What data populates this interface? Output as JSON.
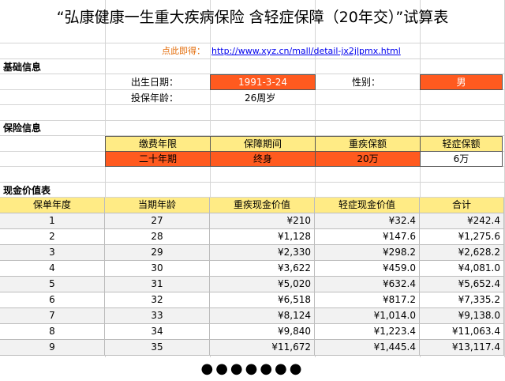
{
  "title": "“弘康健康一生重大疾病保险 含轻症保障（20年交）”试算表",
  "link": {
    "prompt": "点此即得：",
    "url": "http://www.xyz.cn/mall/detail-jx2jlpmx.html"
  },
  "basic_info": {
    "header": "基础信息",
    "birth_label": "出生日期：",
    "birth_value": "1991-3-24",
    "gender_label": "性别：",
    "gender_value": "男",
    "age_label": "投保年龄：",
    "age_value": "26周岁"
  },
  "insurance_info": {
    "header": "保险信息",
    "columns": [
      "缴费年限",
      "保障期间",
      "重疾保额",
      "轻症保额"
    ],
    "values": [
      "二十年期",
      "终身",
      "20万",
      "6万"
    ]
  },
  "cash_value": {
    "header": "现金价值表",
    "columns": [
      "保单年度",
      "当期年龄",
      "重疾现金价值",
      "轻症现金价值",
      "合计"
    ],
    "rows": [
      [
        "1",
        "27",
        "¥210",
        "¥32.4",
        "¥242.4"
      ],
      [
        "2",
        "28",
        "¥1,128",
        "¥147.6",
        "¥1,275.6"
      ],
      [
        "3",
        "29",
        "¥2,330",
        "¥298.2",
        "¥2,628.2"
      ],
      [
        "4",
        "30",
        "¥3,622",
        "¥459.0",
        "¥4,081.0"
      ],
      [
        "5",
        "31",
        "¥5,020",
        "¥632.4",
        "¥5,652.4"
      ],
      [
        "6",
        "32",
        "¥6,518",
        "¥817.2",
        "¥7,335.2"
      ],
      [
        "7",
        "33",
        "¥8,124",
        "¥1,014.0",
        "¥9,138.0"
      ],
      [
        "8",
        "34",
        "¥9,840",
        "¥1,223.4",
        "¥11,063.4"
      ],
      [
        "9",
        "35",
        "¥11,672",
        "¥1,445.4",
        "¥13,117.4"
      ]
    ]
  },
  "pagination": {
    "dots": "●●●●●●●"
  }
}
